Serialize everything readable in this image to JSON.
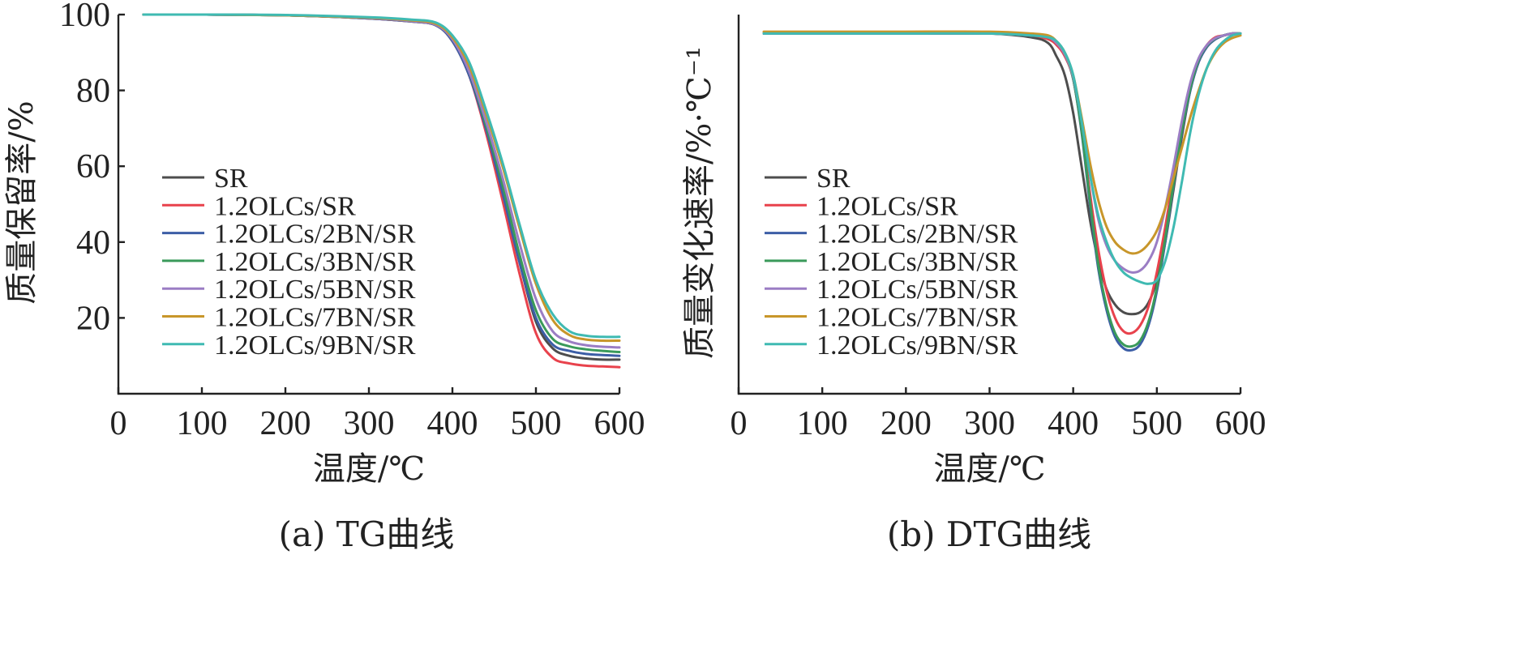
{
  "colors": {
    "series": [
      "#4d4d4d",
      "#e8424c",
      "#3c5ea6",
      "#3a9a5a",
      "#9b7dc4",
      "#c8962a",
      "#3fbab2"
    ]
  },
  "chart_data": [
    {
      "type": "line",
      "caption": "(a) TG曲线",
      "xlabel": "温度/℃",
      "ylabel": "质量保留率/%",
      "xlim": [
        0,
        600
      ],
      "ylim": [
        0,
        100
      ],
      "xticks": [
        "0",
        "100",
        "200",
        "300",
        "400",
        "500",
        "600"
      ],
      "yticks": [
        "20",
        "40",
        "60",
        "80",
        "100"
      ],
      "legend_position": "center-left",
      "x": [
        30,
        100,
        200,
        300,
        350,
        380,
        400,
        420,
        440,
        460,
        480,
        500,
        520,
        540,
        560,
        580,
        600
      ],
      "series": [
        {
          "name": "SR",
          "values": [
            100,
            100,
            99.8,
            99,
            98.2,
            97.2,
            93,
            84,
            70,
            53,
            35,
            19,
            12,
            10,
            9.3,
            9,
            9
          ]
        },
        {
          "name": "1.2OLCs/SR",
          "values": [
            100,
            100,
            99.8,
            99,
            98.2,
            97.2,
            93,
            84,
            69,
            51,
            32,
            16,
            9.5,
            8,
            7.4,
            7.2,
            7
          ]
        },
        {
          "name": "1.2OLCs/2BN/SR",
          "values": [
            100,
            100,
            99.8,
            99,
            98.2,
            97.2,
            93,
            84,
            70,
            53,
            35,
            20,
            13,
            11.3,
            10.5,
            10.2,
            10
          ]
        },
        {
          "name": "1.2OLCs/3BN/SR",
          "values": [
            100,
            100,
            99.8,
            99.1,
            98.3,
            97.3,
            93.5,
            85,
            71,
            55,
            37,
            22,
            14.5,
            12.5,
            11.7,
            11.3,
            11
          ]
        },
        {
          "name": "1.2OLCs/5BN/SR",
          "values": [
            100,
            100,
            99.8,
            99.1,
            98.3,
            97.3,
            93.5,
            85,
            72,
            57,
            40,
            25,
            16.5,
            13.8,
            12.8,
            12.4,
            12.2
          ]
        },
        {
          "name": "1.2OLCs/7BN/SR",
          "values": [
            100,
            100,
            99.8,
            99.2,
            98.5,
            97.6,
            94,
            86.5,
            74,
            60,
            44,
            29,
            19.5,
            15.5,
            14.3,
            14,
            14
          ]
        },
        {
          "name": "1.2OLCs/9BN/SR",
          "values": [
            100,
            100,
            99.9,
            99.3,
            98.7,
            97.9,
            94.5,
            87.5,
            75,
            61,
            45,
            30,
            21,
            16.5,
            15.3,
            15,
            15
          ]
        }
      ]
    },
    {
      "type": "line",
      "caption": "(b) DTG曲线",
      "xlabel": "温度/℃",
      "ylabel": "质量变化速率/%·℃⁻¹",
      "xlim": [
        0,
        600
      ],
      "ylim": [
        0,
        100
      ],
      "xticks": [
        "0",
        "100",
        "200",
        "300",
        "400",
        "500",
        "600"
      ],
      "yticks": [],
      "legend_position": "center-left",
      "x": [
        30,
        100,
        200,
        300,
        350,
        370,
        380,
        390,
        400,
        410,
        420,
        430,
        440,
        450,
        460,
        470,
        480,
        490,
        500,
        510,
        520,
        530,
        540,
        550,
        560,
        570,
        580,
        590,
        600
      ],
      "series": [
        {
          "name": "SR",
          "values": [
            95,
            95,
            95,
            95,
            94,
            92.5,
            89,
            84,
            74,
            60,
            46,
            35,
            27.5,
            23.5,
            21.5,
            21,
            21.5,
            24,
            30,
            40,
            54,
            68,
            80,
            87.5,
            91.5,
            93.5,
            94.5,
            95,
            95
          ]
        },
        {
          "name": "1.2OLCs/SR",
          "values": [
            95,
            95,
            95,
            95,
            94.5,
            93.5,
            92,
            89,
            83,
            70,
            53,
            38,
            27,
            20,
            16.5,
            16,
            18,
            23,
            32,
            44,
            57,
            70,
            81,
            88,
            92,
            94,
            94.5,
            95,
            95
          ]
        },
        {
          "name": "1.2OLCs/2BN/SR",
          "values": [
            95,
            95,
            95,
            95,
            94.5,
            94,
            92.5,
            89.5,
            83,
            69,
            50,
            33,
            22,
            15,
            12,
            11.5,
            13,
            18,
            27,
            40,
            55,
            69,
            80,
            87.5,
            91.5,
            93.5,
            94.5,
            95,
            95
          ]
        },
        {
          "name": "1.2OLCs/3BN/SR",
          "values": [
            95,
            95,
            95,
            95,
            94.5,
            94,
            92.5,
            89.5,
            83,
            69.5,
            51,
            34,
            23,
            16,
            13,
            12.5,
            14,
            19,
            28,
            41,
            55.5,
            69.5,
            80.5,
            88,
            91.8,
            93.7,
            94.5,
            95,
            95
          ]
        },
        {
          "name": "1.2OLCs/5BN/SR",
          "values": [
            95,
            95,
            95,
            95,
            94.5,
            94,
            92.5,
            89.5,
            83.5,
            72,
            58,
            46,
            39,
            35,
            33,
            32,
            32.5,
            35,
            40,
            49,
            60,
            72,
            82,
            88.5,
            92,
            93.8,
            94.5,
            95,
            95
          ]
        },
        {
          "name": "1.2OLCs/7BN/SR",
          "values": [
            95.5,
            95.5,
            95.5,
            95.5,
            95,
            94.5,
            93,
            90,
            84,
            73,
            61,
            51,
            44,
            40,
            38,
            37,
            37.5,
            39.5,
            43,
            49,
            57,
            65,
            73,
            80,
            86,
            90,
            92.5,
            93.8,
            94.5
          ]
        },
        {
          "name": "1.2OLCs/9BN/SR",
          "values": [
            95,
            95,
            95,
            95,
            94.5,
            94,
            93,
            90,
            84,
            72,
            58,
            47,
            40,
            35,
            32,
            30.5,
            29.5,
            29,
            30,
            35,
            44,
            56,
            69,
            79,
            86,
            90.5,
            93,
            94.5,
            95
          ]
        }
      ]
    }
  ]
}
